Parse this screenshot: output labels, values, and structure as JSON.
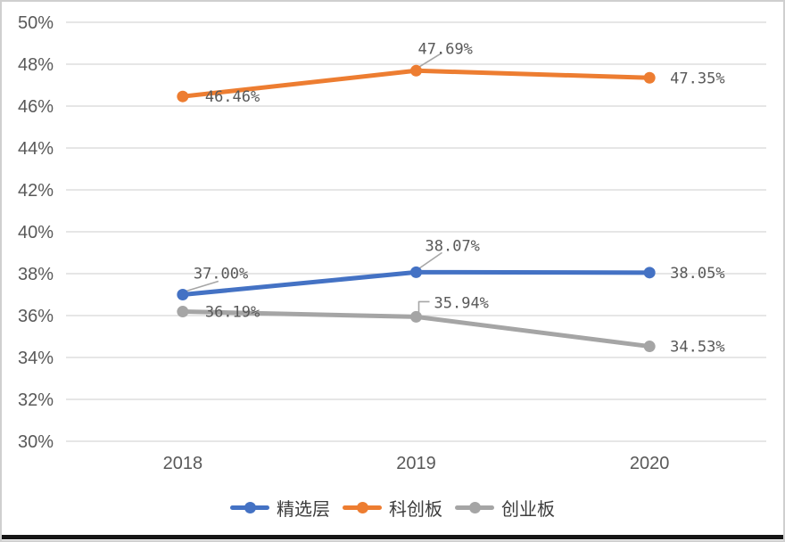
{
  "chart_data": {
    "type": "line",
    "categories": [
      "2018",
      "2019",
      "2020"
    ],
    "series": [
      {
        "name": "精选层",
        "color": "#4472C4",
        "values": [
          37.0,
          38.07,
          38.05
        ],
        "labels": [
          "37.00%",
          "38.07%",
          "38.05%"
        ]
      },
      {
        "name": "科创板",
        "color": "#ED7D31",
        "values": [
          46.46,
          47.69,
          47.35
        ],
        "labels": [
          "46.46%",
          "47.69%",
          "47.35%"
        ]
      },
      {
        "name": "创业板",
        "color": "#A5A5A5",
        "values": [
          36.19,
          35.94,
          34.53
        ],
        "labels": [
          "36.19%",
          "35.94%",
          "34.53%"
        ]
      }
    ],
    "y_axis": {
      "min": 30,
      "max": 50,
      "step": 2,
      "tick_labels": [
        "30%",
        "32%",
        "34%",
        "36%",
        "38%",
        "40%",
        "42%",
        "44%",
        "46%",
        "48%",
        "50%"
      ]
    },
    "xlabel": "",
    "ylabel": "",
    "title": "",
    "grid": true,
    "legend_position": "bottom",
    "colors": {
      "gridline": "#D7D7D7",
      "axis_text": "#595959",
      "data_label_text": "#595959",
      "leader_line": "#A6A6A6",
      "frame_border": "#cfcfcf",
      "bottom_bar": "#161616"
    }
  }
}
